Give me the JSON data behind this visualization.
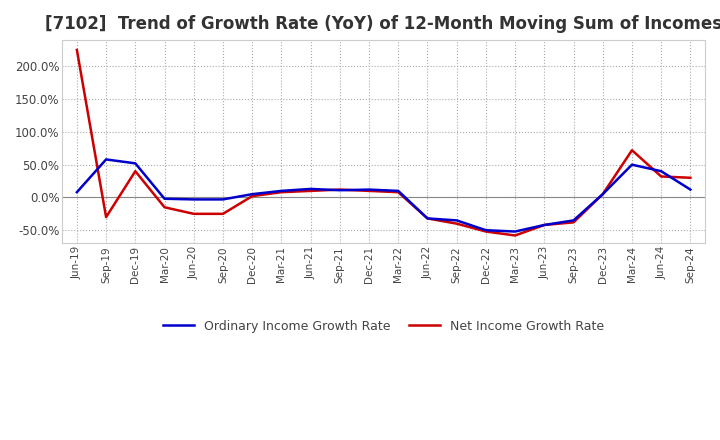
{
  "title": "[7102]  Trend of Growth Rate (YoY) of 12-Month Moving Sum of Incomes",
  "title_fontsize": 12,
  "ylim": [
    -70,
    240
  ],
  "yticks": [
    -50,
    0,
    50,
    100,
    150,
    200
  ],
  "background_color": "#ffffff",
  "grid_color": "#aaaaaa",
  "ordinary_color": "#0000cc",
  "net_color": "#cc0000",
  "legend_ordinary": "Ordinary Income Growth Rate",
  "legend_net": "Net Income Growth Rate",
  "x_labels": [
    "Jun-19",
    "Sep-19",
    "Dec-19",
    "Mar-20",
    "Jun-20",
    "Sep-20",
    "Dec-20",
    "Mar-21",
    "Jun-21",
    "Sep-21",
    "Dec-21",
    "Mar-22",
    "Jun-22",
    "Sep-22",
    "Dec-22",
    "Mar-23",
    "Jun-23",
    "Sep-23",
    "Dec-23",
    "Mar-24",
    "Jun-24",
    "Sep-24"
  ],
  "ordinary_income_growth": [
    8,
    58,
    52,
    -2,
    -3,
    -3,
    5,
    10,
    13,
    11,
    12,
    10,
    -32,
    -35,
    -50,
    -52,
    -42,
    -35,
    5,
    50,
    40,
    12
  ],
  "net_income_growth": [
    225,
    -30,
    40,
    -15,
    -25,
    -25,
    2,
    8,
    10,
    12,
    10,
    8,
    -32,
    -40,
    -52,
    -58,
    -42,
    -38,
    5,
    72,
    32,
    30
  ]
}
